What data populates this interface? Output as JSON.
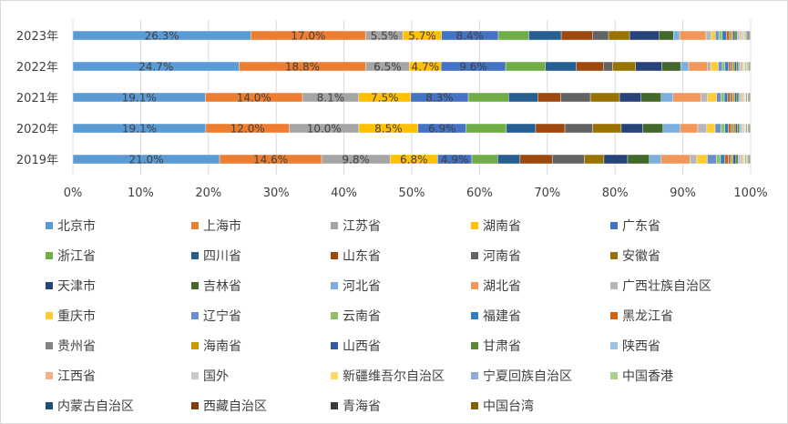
{
  "chart_data": {
    "type": "bar",
    "orientation": "horizontal",
    "stacked": "percent",
    "legend_position": "bottom",
    "grid": true,
    "xlim": [
      0,
      100
    ],
    "x_ticks": [
      "0%",
      "10%",
      "20%",
      "30%",
      "40%",
      "50%",
      "60%",
      "70%",
      "80%",
      "90%",
      "100%"
    ],
    "categories": [
      "2023年",
      "2022年",
      "2021年",
      "2020年",
      "2019年"
    ],
    "series": [
      {
        "name": "北京市",
        "color": "#5b9bd5",
        "values": [
          26.3,
          24.7,
          19.1,
          19.1,
          21.0
        ],
        "labels": [
          "26.3%",
          "24.7%",
          "19.1%",
          "19.1%",
          "21.0%"
        ]
      },
      {
        "name": "上海市",
        "color": "#ed7d31",
        "values": [
          17.0,
          18.8,
          14.0,
          12.0,
          14.6
        ],
        "labels": [
          "17.0%",
          "18.8%",
          "14.0%",
          "12.0%",
          "14.6%"
        ]
      },
      {
        "name": "江苏省",
        "color": "#a5a5a5",
        "values": [
          5.5,
          6.5,
          8.1,
          10.0,
          9.8
        ],
        "labels": [
          "5.5%",
          "6.5%",
          "8.1%",
          "10.0%",
          "9.8%"
        ]
      },
      {
        "name": "湖南省",
        "color": "#ffc000",
        "values": [
          5.7,
          4.7,
          7.5,
          8.5,
          6.8
        ],
        "labels": [
          "5.7%",
          "4.7%",
          "7.5%",
          "8.5%",
          "6.8%"
        ]
      },
      {
        "name": "广东省",
        "color": "#4472c4",
        "values": [
          8.4,
          9.6,
          8.3,
          6.9,
          4.9
        ],
        "labels": [
          "8.4%",
          "9.6%",
          "8.3%",
          "6.9%",
          "4.9%"
        ]
      },
      {
        "name": "浙江省",
        "color": "#70ad47",
        "values": [
          4.5,
          5.9,
          5.8,
          5.8,
          3.7
        ],
        "labels": []
      },
      {
        "name": "四川省",
        "color": "#255e91",
        "values": [
          4.8,
          4.6,
          4.2,
          4.2,
          3.2
        ],
        "labels": []
      },
      {
        "name": "山东省",
        "color": "#9e480e",
        "values": [
          4.6,
          4.0,
          3.3,
          4.2,
          4.6
        ],
        "labels": []
      },
      {
        "name": "河南省",
        "color": "#636363",
        "values": [
          2.4,
          1.4,
          4.3,
          4.0,
          4.6
        ],
        "labels": []
      },
      {
        "name": "安徽省",
        "color": "#997300",
        "values": [
          3.1,
          3.4,
          4.2,
          4.1,
          2.8
        ],
        "labels": []
      },
      {
        "name": "天津市",
        "color": "#264478",
        "values": [
          4.4,
          3.9,
          3.1,
          3.1,
          3.4
        ],
        "labels": []
      },
      {
        "name": "吉林省",
        "color": "#43682b",
        "values": [
          2.1,
          2.8,
          2.9,
          2.9,
          3.1
        ],
        "labels": []
      },
      {
        "name": "河北省",
        "color": "#7cafdd",
        "values": [
          0.9,
          1.2,
          1.7,
          2.5,
          1.7
        ],
        "labels": []
      },
      {
        "name": "湖北省",
        "color": "#f1975a",
        "values": [
          3.9,
          2.8,
          4.0,
          2.5,
          4.1
        ],
        "labels": []
      },
      {
        "name": "广西壮族自治区",
        "color": "#b7b7b7",
        "values": [
          0.8,
          0.5,
          1.0,
          1.3,
          1.0
        ],
        "labels": []
      },
      {
        "name": "重庆市",
        "color": "#ffcd33",
        "values": [
          0.6,
          1.1,
          1.3,
          1.2,
          1.5
        ],
        "labels": []
      },
      {
        "name": "辽宁省",
        "color": "#698ed0",
        "values": [
          0.5,
          0.6,
          0.6,
          0.8,
          1.3
        ],
        "labels": []
      },
      {
        "name": "云南省",
        "color": "#8cc168",
        "values": [
          0.5,
          0.4,
          0.5,
          0.6,
          0.6
        ],
        "labels": []
      },
      {
        "name": "福建省",
        "color": "#327dc2",
        "values": [
          0.6,
          0.5,
          0.5,
          0.5,
          0.6
        ],
        "labels": []
      },
      {
        "name": "黑龙江省",
        "color": "#d26012",
        "values": [
          0.4,
          0.3,
          0.4,
          0.4,
          0.5
        ],
        "labels": []
      },
      {
        "name": "贵州省",
        "color": "#848484",
        "values": [
          0.3,
          0.3,
          0.3,
          0.3,
          0.4
        ],
        "labels": []
      },
      {
        "name": "海南省",
        "color": "#cc9a00",
        "values": [
          0.3,
          0.3,
          0.3,
          0.3,
          0.3
        ],
        "labels": []
      },
      {
        "name": "山西省",
        "color": "#335aa1",
        "values": [
          0.3,
          0.3,
          0.3,
          0.3,
          0.4
        ],
        "labels": []
      },
      {
        "name": "甘肃省",
        "color": "#5a8a39",
        "values": [
          0.3,
          0.3,
          0.3,
          0.3,
          0.3
        ],
        "labels": []
      },
      {
        "name": "陕西省",
        "color": "#9dc3e6",
        "values": [
          0.3,
          0.3,
          0.3,
          0.3,
          0.3
        ],
        "labels": []
      },
      {
        "name": "江西省",
        "color": "#f4b183",
        "values": [
          0.3,
          0.3,
          0.3,
          0.2,
          0.3
        ],
        "labels": []
      },
      {
        "name": "国外",
        "color": "#c9c9c9",
        "values": [
          0.3,
          0.2,
          0.2,
          0.2,
          0.2
        ],
        "labels": []
      },
      {
        "name": "新疆维吾尔自治区",
        "color": "#ffd966",
        "values": [
          0.2,
          0.2,
          0.2,
          0.2,
          0.2
        ],
        "labels": []
      },
      {
        "name": "宁夏回族自治区",
        "color": "#8faadc",
        "values": [
          0.2,
          0.2,
          0.2,
          0.2,
          0.2
        ],
        "labels": []
      },
      {
        "name": "中国香港",
        "color": "#a9d18e",
        "values": [
          0.2,
          0.2,
          0.1,
          0.1,
          0.2
        ],
        "labels": []
      },
      {
        "name": "内蒙古自治区",
        "color": "#1f4e79",
        "values": [
          0.2,
          0.1,
          0.1,
          0.1,
          0.1
        ],
        "labels": []
      },
      {
        "name": "西藏自治区",
        "color": "#843c0c",
        "values": [
          0.1,
          0.1,
          0.1,
          0.1,
          0.1
        ],
        "labels": []
      },
      {
        "name": "青海省",
        "color": "#3a3a3a",
        "values": [
          0.1,
          0.1,
          0.1,
          0.1,
          0.1
        ],
        "labels": []
      },
      {
        "name": "中国台湾",
        "color": "#7f6000",
        "values": [
          0.1,
          0.1,
          0.1,
          0.1,
          0.1
        ],
        "labels": []
      }
    ]
  }
}
